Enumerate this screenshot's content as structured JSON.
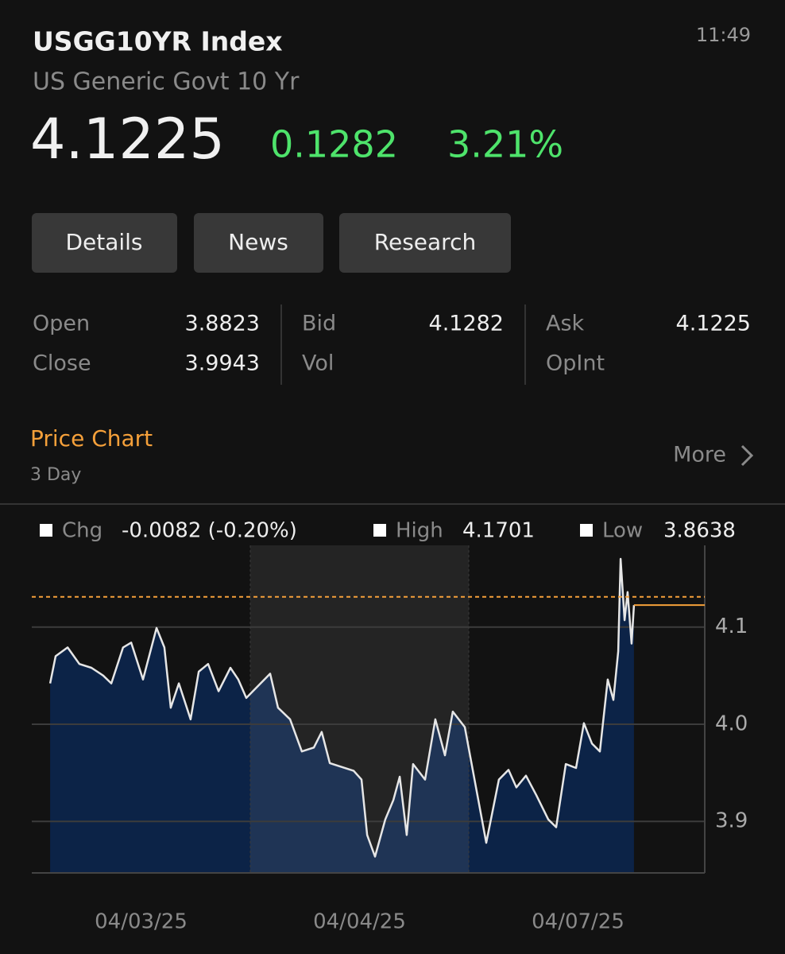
{
  "header": {
    "title": "USGG10YR Index",
    "subtitle": "US Generic Govt 10 Yr",
    "time": "11:49",
    "price": "4.1225",
    "change": "0.1282",
    "change_pct": "3.21%"
  },
  "tabs": [
    "Details",
    "News",
    "Research"
  ],
  "quote": [
    [
      {
        "label": "Open",
        "value": "3.8823"
      },
      {
        "label": "Close",
        "value": "3.9943"
      }
    ],
    [
      {
        "label": "Bid",
        "value": "4.1282"
      },
      {
        "label": "Vol"
      }
    ],
    [
      {
        "label": "Ask",
        "value": "4.1225"
      },
      {
        "label": "OpInt"
      }
    ]
  ],
  "section": {
    "title": "Price Chart",
    "period": "3 Day",
    "more": "More"
  },
  "chart_data": {
    "type": "line",
    "stats": [
      {
        "label": "Chg",
        "value": "-0.0082 (-0.20%)"
      },
      {
        "label": "High",
        "value": "4.1701"
      },
      {
        "label": "Low",
        "value": "3.8638"
      }
    ],
    "x": [
      0.084,
      0.109,
      0.164,
      0.218,
      0.273,
      0.327,
      0.364,
      0.418,
      0.455,
      0.509,
      0.571,
      0.607,
      0.636,
      0.673,
      0.727,
      0.764,
      0.807,
      0.855,
      0.909,
      0.945,
      0.982,
      1.091,
      1.127,
      1.182,
      1.236,
      1.291,
      1.327,
      1.364,
      1.418,
      1.473,
      1.509,
      1.535,
      1.571,
      1.618,
      1.655,
      1.684,
      1.716,
      1.745,
      1.8,
      1.847,
      1.891,
      1.927,
      1.982,
      2.08,
      2.138,
      2.182,
      2.218,
      2.262,
      2.309,
      2.364,
      2.4,
      2.444,
      2.491,
      2.527,
      2.564,
      2.6,
      2.636,
      2.662,
      2.684,
      2.695,
      2.713,
      2.727,
      2.745,
      2.756
    ],
    "series": [
      {
        "color": "#e6e6e6",
        "fill": "#0c2347",
        "values": [
          4.042,
          4.07,
          4.079,
          4.062,
          4.058,
          4.05,
          4.042,
          4.079,
          4.084,
          4.046,
          4.099,
          4.079,
          4.017,
          4.042,
          4.005,
          4.054,
          4.062,
          4.034,
          4.058,
          4.046,
          4.027,
          4.052,
          4.017,
          4.005,
          3.972,
          3.976,
          3.992,
          3.96,
          3.956,
          3.952,
          3.943,
          3.886,
          3.8638,
          3.902,
          3.922,
          3.946,
          3.886,
          3.959,
          3.943,
          4.005,
          3.968,
          4.013,
          3.997,
          3.878,
          3.943,
          3.953,
          3.935,
          3.947,
          3.927,
          3.902,
          3.894,
          3.959,
          3.955,
          4.001,
          3.98,
          3.972,
          4.046,
          4.025,
          4.075,
          4.1701,
          4.107,
          4.136,
          4.083,
          4.1225
        ]
      }
    ],
    "xlim": [
      0,
      3.08
    ],
    "xticks": [
      {
        "value": 0.5,
        "label": "04/03/25"
      },
      {
        "value": 1.5,
        "label": "04/04/25"
      },
      {
        "value": 2.5,
        "label": "04/07/25"
      }
    ],
    "ylim": [
      3.847,
      4.184
    ],
    "yticks": [
      3.9,
      {
        "value": 4,
        "label": "4.0"
      },
      4.1
    ],
    "grid": true,
    "session_band": [
      1,
      2
    ],
    "reference_line": {
      "value": 4.131,
      "color": "#f5a03a"
    },
    "last_color": "#f5a03a"
  }
}
